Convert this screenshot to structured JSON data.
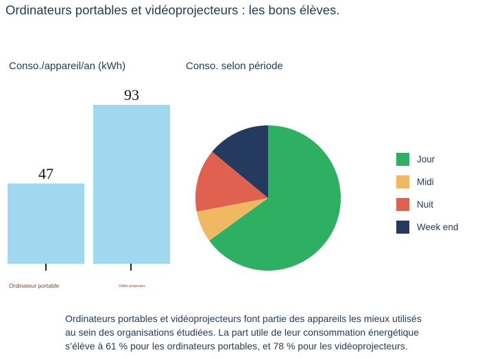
{
  "title": "Ordinateurs portables et vidéoprojecteurs : les bons élèves.",
  "caption_lines": [
    "Ordinateurs portables et vidéoprojecteurs font partie des appareils les mieux utilisés",
    "au sein des organisations étudiées. La part utile de leur consommation énergétique",
    "s’élève à 61 % pour les ordinateurs portables, et 78 % pour les vidéoprojecteurs."
  ],
  "chart_data": [
    {
      "type": "bar",
      "title": "Conso./appareil/an (kWh)",
      "categories": [
        "Ordinateur portable",
        "Vidéo projecteu."
      ],
      "values": [
        47,
        93
      ],
      "ylim": [
        0,
        93
      ],
      "grid": false,
      "bar_color": "#a0d8f0",
      "data_labels": [
        "47",
        "93"
      ]
    },
    {
      "type": "pie",
      "title": "Conso. selon période",
      "categories": [
        "Jour",
        "Midi",
        "Nuit",
        "Week end"
      ],
      "values": [
        65,
        7,
        14,
        14
      ],
      "colors": [
        "#2db062",
        "#f0b863",
        "#e0614f",
        "#243a5e"
      ],
      "legend_position": "right"
    }
  ]
}
